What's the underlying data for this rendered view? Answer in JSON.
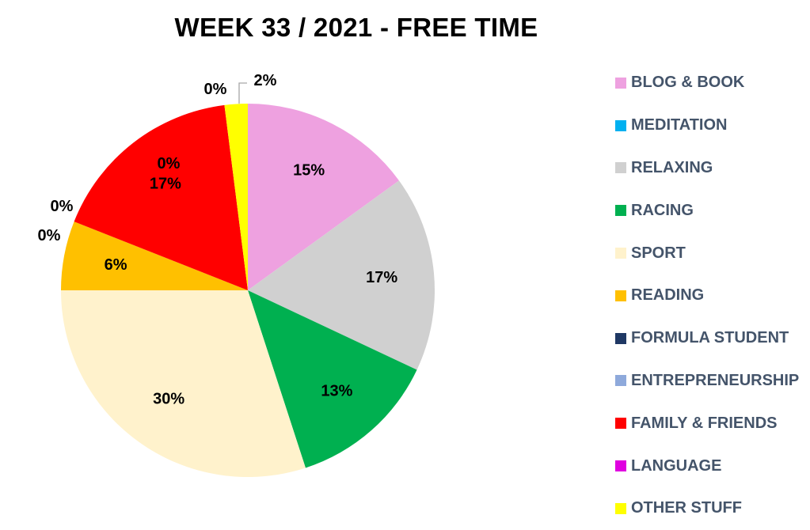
{
  "chart_data": {
    "type": "pie",
    "title": "WEEK 33 / 2021 - FREE TIME",
    "legend_position": "right",
    "slices": [
      {
        "name": "BLOG & BOOK",
        "value": 15,
        "label": "15%",
        "color": "#eea1e0"
      },
      {
        "name": "MEDITATION",
        "value": 0,
        "label": "0%",
        "color": "#00b0f0"
      },
      {
        "name": "RELAXING",
        "value": 17,
        "label": "17%",
        "color": "#d0d0d0"
      },
      {
        "name": "RACING",
        "value": 13,
        "label": "13%",
        "color": "#00b050"
      },
      {
        "name": "SPORT",
        "value": 30,
        "label": "30%",
        "color": "#fff2cc"
      },
      {
        "name": "READING",
        "value": 6,
        "label": "6%",
        "color": "#ffc000"
      },
      {
        "name": "FORMULA STUDENT",
        "value": 0,
        "label": "0%",
        "color": "#1f3864"
      },
      {
        "name": "ENTREPRENEURSHIP",
        "value": 0,
        "label": "0%",
        "color": "#8ea9db"
      },
      {
        "name": "FAMILY & FRIENDS",
        "value": 17,
        "label": "17%",
        "color": "#ff0000"
      },
      {
        "name": "LANGUAGE",
        "value": 0,
        "label": "0%",
        "color": "#e000e0"
      },
      {
        "name": "OTHER STUFF",
        "value": 2,
        "label": "2%",
        "color": "#ffff00"
      }
    ]
  }
}
